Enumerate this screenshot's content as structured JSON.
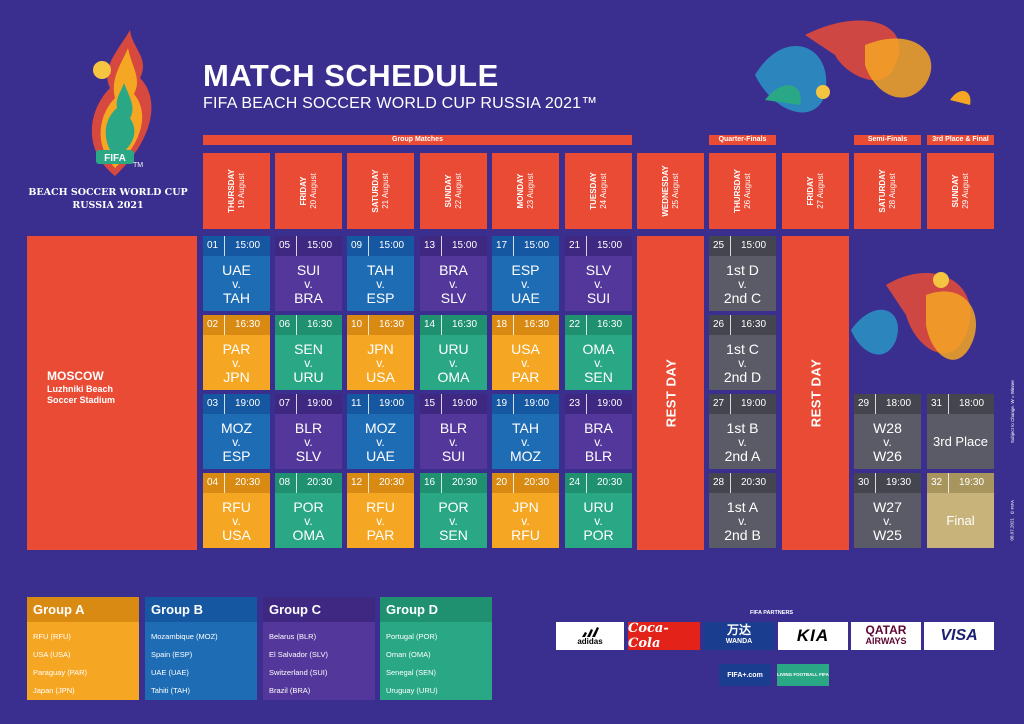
{
  "header": {
    "title": "MATCH SCHEDULE",
    "subtitle": "FIFA BEACH SOCCER WORLD CUP RUSSIA 2021™"
  },
  "logo": {
    "badge": "FIFA",
    "tm": "TM",
    "line1": "BEACH SOCCER WORLD CUP",
    "line2": "RUSSIA 2021"
  },
  "stages": {
    "group": "Group Matches",
    "qf": "Quarter-Finals",
    "sf": "Semi-Finals",
    "final": "3rd Place & Final"
  },
  "days": [
    {
      "dow": "THURSDAY",
      "date": "19 August"
    },
    {
      "dow": "FRIDAY",
      "date": "20 August"
    },
    {
      "dow": "SATURDAY",
      "date": "21 August"
    },
    {
      "dow": "SUNDAY",
      "date": "22 August"
    },
    {
      "dow": "MONDAY",
      "date": "23 August"
    },
    {
      "dow": "TUESDAY",
      "date": "24 August"
    },
    {
      "dow": "WEDNESDAY",
      "date": "25 August"
    },
    {
      "dow": "THURSDAY",
      "date": "26 August"
    },
    {
      "dow": "FRIDAY",
      "date": "27 August"
    },
    {
      "dow": "SATURDAY",
      "date": "28 August"
    },
    {
      "dow": "SUNDAY",
      "date": "29 August"
    }
  ],
  "venue": {
    "city": "MOSCOW",
    "line1": "Luzhniki Beach",
    "line2": "Soccer Stadium"
  },
  "rest_day": "REST DAY",
  "vs": "v.",
  "matches": [
    {
      "no": "01",
      "time": "15:00",
      "home": "UAE",
      "away": "TAH",
      "color": "blue"
    },
    {
      "no": "02",
      "time": "16:30",
      "home": "PAR",
      "away": "JPN",
      "color": "orange"
    },
    {
      "no": "03",
      "time": "19:00",
      "home": "MOZ",
      "away": "ESP",
      "color": "blue"
    },
    {
      "no": "04",
      "time": "20:30",
      "home": "RFU",
      "away": "USA",
      "color": "orange"
    },
    {
      "no": "05",
      "time": "15:00",
      "home": "SUI",
      "away": "BRA",
      "color": "purple"
    },
    {
      "no": "06",
      "time": "16:30",
      "home": "SEN",
      "away": "URU",
      "color": "green"
    },
    {
      "no": "07",
      "time": "19:00",
      "home": "BLR",
      "away": "SLV",
      "color": "purple"
    },
    {
      "no": "08",
      "time": "20:30",
      "home": "POR",
      "away": "OMA",
      "color": "green"
    },
    {
      "no": "09",
      "time": "15:00",
      "home": "TAH",
      "away": "ESP",
      "color": "blue"
    },
    {
      "no": "10",
      "time": "16:30",
      "home": "JPN",
      "away": "USA",
      "color": "orange"
    },
    {
      "no": "11",
      "time": "19:00",
      "home": "MOZ",
      "away": "UAE",
      "color": "blue"
    },
    {
      "no": "12",
      "time": "20:30",
      "home": "RFU",
      "away": "PAR",
      "color": "orange"
    },
    {
      "no": "13",
      "time": "15:00",
      "home": "BRA",
      "away": "SLV",
      "color": "purple"
    },
    {
      "no": "14",
      "time": "16:30",
      "home": "URU",
      "away": "OMA",
      "color": "green"
    },
    {
      "no": "15",
      "time": "19:00",
      "home": "BLR",
      "away": "SUI",
      "color": "purple"
    },
    {
      "no": "16",
      "time": "20:30",
      "home": "POR",
      "away": "SEN",
      "color": "green"
    },
    {
      "no": "17",
      "time": "15:00",
      "home": "ESP",
      "away": "UAE",
      "color": "blue"
    },
    {
      "no": "18",
      "time": "16:30",
      "home": "USA",
      "away": "PAR",
      "color": "orange"
    },
    {
      "no": "19",
      "time": "19:00",
      "home": "TAH",
      "away": "MOZ",
      "color": "blue"
    },
    {
      "no": "20",
      "time": "20:30",
      "home": "JPN",
      "away": "RFU",
      "color": "orange"
    },
    {
      "no": "21",
      "time": "15:00",
      "home": "SLV",
      "away": "SUI",
      "color": "purple"
    },
    {
      "no": "22",
      "time": "16:30",
      "home": "OMA",
      "away": "SEN",
      "color": "green"
    },
    {
      "no": "23",
      "time": "19:00",
      "home": "BRA",
      "away": "BLR",
      "color": "purple"
    },
    {
      "no": "24",
      "time": "20:30",
      "home": "URU",
      "away": "POR",
      "color": "green"
    },
    {
      "no": "25",
      "time": "15:00",
      "home": "1st D",
      "away": "2nd C",
      "color": "gray"
    },
    {
      "no": "26",
      "time": "16:30",
      "home": "1st C",
      "away": "2nd D",
      "color": "gray"
    },
    {
      "no": "27",
      "time": "19:00",
      "home": "1st B",
      "away": "2nd A",
      "color": "gray"
    },
    {
      "no": "28",
      "time": "20:30",
      "home": "1st A",
      "away": "2nd B",
      "color": "gray"
    },
    {
      "no": "29",
      "time": "18:00",
      "home": "W28",
      "away": "W26",
      "color": "gray"
    },
    {
      "no": "30",
      "time": "19:30",
      "home": "W27",
      "away": "W25",
      "color": "gray"
    },
    {
      "no": "31",
      "time": "18:00",
      "label": "3rd Place",
      "color": "gray"
    },
    {
      "no": "32",
      "time": "19:30",
      "label": "Final",
      "color": "gold"
    }
  ],
  "side_notes": {
    "subject": "Subject to Change. W = Winner",
    "copyright": "© FIFA",
    "date": "08.07.2021"
  },
  "groups": [
    {
      "name": "Group A",
      "teams": [
        "RFU (RFU)",
        "USA (USA)",
        "Paraguay (PAR)",
        "Japan (JPN)"
      ]
    },
    {
      "name": "Group B",
      "teams": [
        "Mozambique (MOZ)",
        "Spain (ESP)",
        "UAE (UAE)",
        "Tahiti (TAH)"
      ]
    },
    {
      "name": "Group C",
      "teams": [
        "Belarus (BLR)",
        "El Salvador (SLV)",
        "Switzerland (SUI)",
        "Brazil (BRA)"
      ]
    },
    {
      "name": "Group D",
      "teams": [
        "Portugal (POR)",
        "Oman (OMA)",
        "Senegal (SEN)",
        "Uruguay (URU)"
      ]
    }
  ],
  "partners": {
    "label": "FIFA PARTNERS",
    "logos": [
      "adidas",
      "Coca-Cola",
      "万达",
      "WANDA",
      "KIA",
      "QATAR",
      "AIRWAYS",
      "VISA"
    ],
    "fifacom": "FIFA+.com",
    "living": "LIVING FOOTBALL FIFA"
  },
  "colors": {
    "background": "#3a2f8f",
    "red": "#e94b35",
    "blue": "#1e6cb4",
    "orange": "#f5a623",
    "purple": "#54379a",
    "green": "#2aa886",
    "gray": "#5a5b66",
    "gold": "#c8b47a"
  }
}
